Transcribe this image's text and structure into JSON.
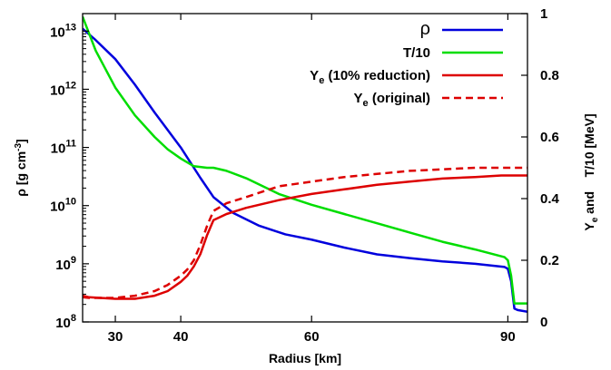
{
  "chart_data": {
    "type": "line",
    "title": "",
    "xlabel": "Radius [km]",
    "ylabel_left": {
      "main": "ρ [g cm",
      "sup": "-3",
      "tail": "]"
    },
    "ylabel_right": {
      "ye": "Y",
      "ye_sub": "e",
      "rest": " and    T/10 [MeV]"
    },
    "xlim": [
      25,
      93
    ],
    "ylim_left": [
      100000000,
      20000000000000
    ],
    "ylim_right": [
      0,
      1
    ],
    "y_left_scale": "log",
    "grid": false,
    "legend_position": "top-right",
    "x_ticks": [
      30,
      40,
      60,
      90
    ],
    "x_tick_labels": [
      "30",
      "40",
      "60",
      "90"
    ],
    "y_left_ticks": [
      {
        "value": 100000000,
        "base": "10",
        "exp": "8"
      },
      {
        "value": 1000000000,
        "base": "10",
        "exp": "9"
      },
      {
        "value": 10000000000,
        "base": "10",
        "exp": "10"
      },
      {
        "value": 100000000000,
        "base": "10",
        "exp": "11"
      },
      {
        "value": 1000000000000,
        "base": "10",
        "exp": "12"
      },
      {
        "value": 10000000000000,
        "base": "10",
        "exp": "13"
      }
    ],
    "y_right_ticks": [
      {
        "value": 0,
        "label": "0"
      },
      {
        "value": 0.2,
        "label": "0.2"
      },
      {
        "value": 0.4,
        "label": "0.4"
      },
      {
        "value": 0.6,
        "label": "0.6"
      },
      {
        "value": 0.8,
        "label": "0.8"
      },
      {
        "value": 1,
        "label": "1"
      }
    ],
    "series": [
      {
        "name": "ρ",
        "axis": "left",
        "color": "#0000dd",
        "dash": "solid",
        "x": [
          25,
          27,
          30,
          33,
          36,
          40,
          43,
          45,
          48,
          52,
          56,
          60,
          65,
          70,
          75,
          80,
          85,
          89.5,
          90,
          90.5,
          91,
          91.5,
          93
        ],
        "y": [
          11000000000000,
          7000000000000,
          3300000000000,
          1200000000000,
          400000000000,
          100000000000,
          30000000000,
          14000000000,
          7500000000,
          4500000000,
          3200000000,
          2600000000,
          1900000000,
          1450000000,
          1250000000,
          1100000000,
          1000000000,
          880000000,
          820000000,
          500000000,
          170000000,
          160000000,
          150000000
        ]
      },
      {
        "name": "T/10",
        "legend_base": "T/10",
        "axis": "right",
        "color": "#00dd00",
        "dash": "solid",
        "x": [
          25,
          27,
          30,
          33,
          36,
          38,
          40,
          42,
          44,
          45,
          47,
          50,
          55,
          60,
          65,
          70,
          75,
          80,
          85,
          89.5,
          90,
          90.5,
          91,
          92,
          93
        ],
        "y": [
          0.99,
          0.88,
          0.76,
          0.67,
          0.6,
          0.56,
          0.53,
          0.505,
          0.5,
          0.5,
          0.49,
          0.466,
          0.415,
          0.38,
          0.35,
          0.32,
          0.29,
          0.26,
          0.235,
          0.21,
          0.2,
          0.15,
          0.06,
          0.06,
          0.06
        ]
      },
      {
        "name": "Ye (10% reduction)",
        "legend_base": "Y",
        "legend_sub": "e",
        "legend_tail": " (10% reduction)",
        "axis": "right",
        "color": "#dd0000",
        "dash": "solid",
        "x": [
          25,
          26,
          30,
          33,
          36,
          38,
          40,
          41,
          42,
          43,
          44,
          45,
          47,
          50,
          55,
          60,
          65,
          70,
          75,
          80,
          85,
          89,
          90,
          93
        ],
        "y": [
          0.085,
          0.08,
          0.075,
          0.075,
          0.085,
          0.1,
          0.13,
          0.15,
          0.18,
          0.22,
          0.28,
          0.33,
          0.35,
          0.37,
          0.395,
          0.415,
          0.43,
          0.445,
          0.455,
          0.465,
          0.47,
          0.475,
          0.475,
          0.475
        ]
      },
      {
        "name": "Ye (original)",
        "legend_base": "Y",
        "legend_sub": "e",
        "legend_tail": " (original)",
        "axis": "right",
        "color": "#dd0000",
        "dash": "dashed",
        "x": [
          25,
          26,
          30,
          33,
          36,
          38,
          40,
          41,
          42,
          43,
          44,
          45,
          47,
          50,
          55,
          60,
          65,
          70,
          75,
          80,
          85,
          90,
          93
        ],
        "y": [
          0.08,
          0.078,
          0.078,
          0.085,
          0.1,
          0.12,
          0.15,
          0.17,
          0.2,
          0.25,
          0.31,
          0.36,
          0.385,
          0.405,
          0.44,
          0.455,
          0.47,
          0.48,
          0.49,
          0.495,
          0.5,
          0.5,
          0.5
        ]
      }
    ]
  }
}
